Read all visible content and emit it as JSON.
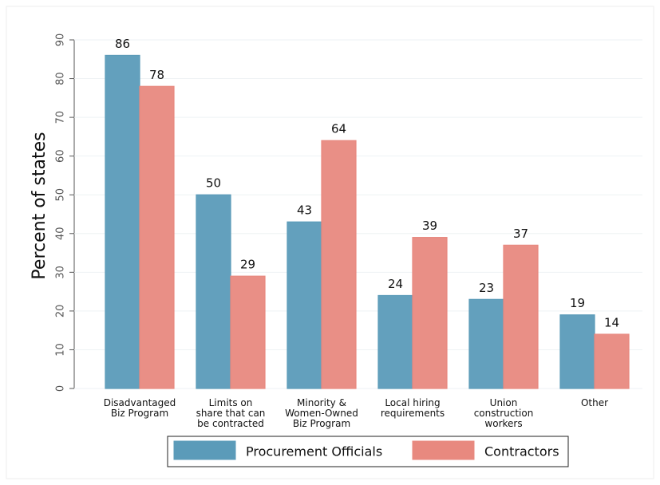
{
  "chart_data": {
    "type": "bar",
    "y_label": "Percent of states",
    "categories": [
      [
        "Disadvantaged",
        "Biz Program"
      ],
      [
        "Limits on",
        "share that can",
        "be contracted"
      ],
      [
        "Minority &",
        "Women-Owned",
        "Biz Program"
      ],
      [
        "Local hiring",
        "requirements"
      ],
      [
        "Union",
        "construction",
        "workers"
      ],
      [
        "Other"
      ]
    ],
    "series": [
      {
        "name": "Procurement Officials",
        "color": "#5b9bb9",
        "values": [
          86,
          50,
          43,
          24,
          23,
          19
        ]
      },
      {
        "name": "Contractors",
        "color": "#e8897f",
        "values": [
          78,
          29,
          64,
          39,
          37,
          14
        ]
      }
    ],
    "ylim": [
      0,
      90
    ],
    "yticks": [
      0,
      10,
      20,
      30,
      40,
      50,
      60,
      70,
      80,
      90
    ],
    "grid": true
  }
}
